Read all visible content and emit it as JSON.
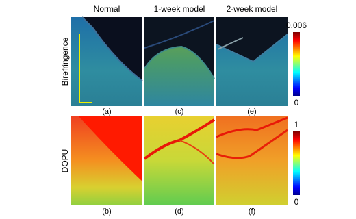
{
  "columns": [
    "Normal",
    "1-week model",
    "2-week model"
  ],
  "rows": [
    "Birefringence",
    "DOPU"
  ],
  "panels": [
    "(a)",
    "(c)",
    "(e)",
    "(b)",
    "(d)",
    "(f)"
  ],
  "colorbars": [
    {
      "max": 0.006,
      "min": 0
    },
    {
      "max": 1,
      "min": 0
    }
  ]
}
